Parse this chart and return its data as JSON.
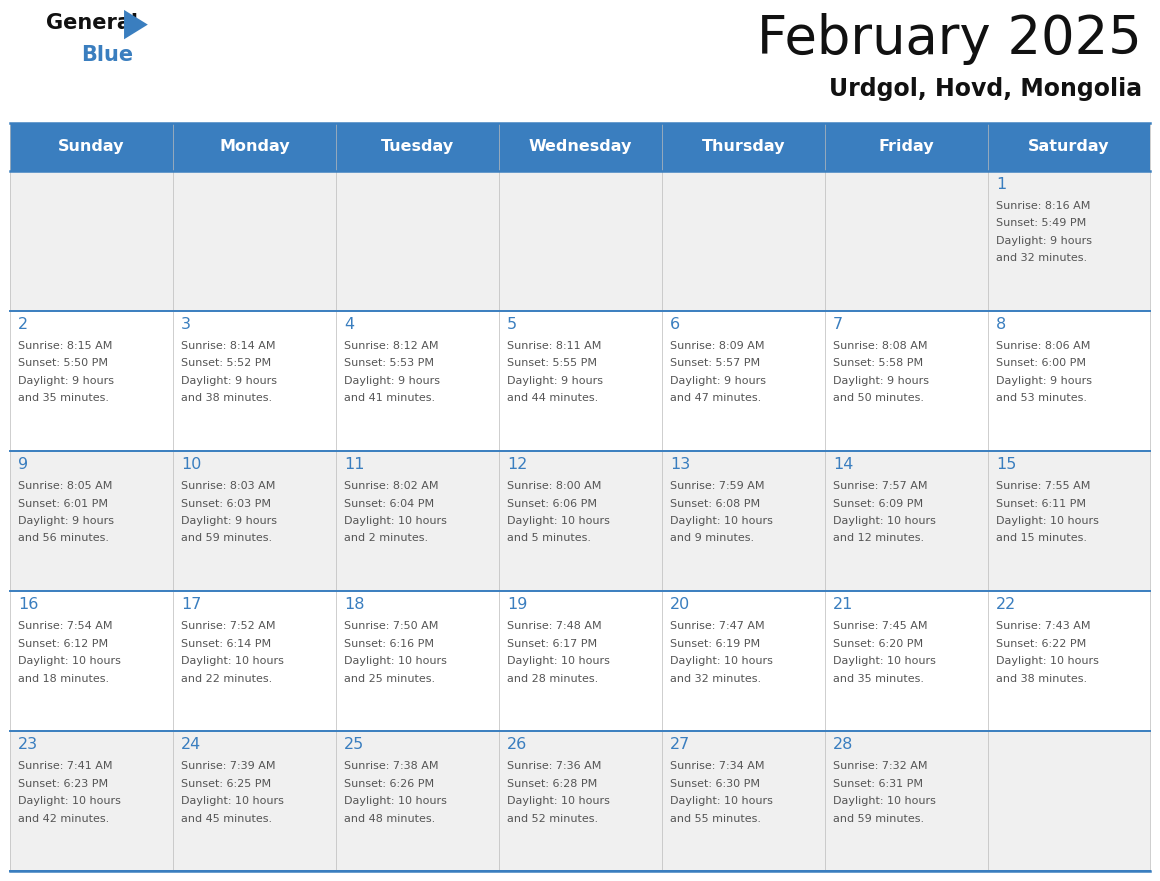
{
  "title": "February 2025",
  "subtitle": "Urdgol, Hovd, Mongolia",
  "header_color": "#3a7ebf",
  "header_text_color": "#ffffff",
  "day_names": [
    "Sunday",
    "Monday",
    "Tuesday",
    "Wednesday",
    "Thursday",
    "Friday",
    "Saturday"
  ],
  "background_color": "#ffffff",
  "cell_bg_even": "#f0f0f0",
  "cell_bg_odd": "#ffffff",
  "day_num_color": "#3a7ebf",
  "text_color": "#555555",
  "grid_color": "#bbbbbb",
  "days": [
    {
      "day": 1,
      "col": 6,
      "row": 0,
      "sunrise": "8:16 AM",
      "sunset": "5:49 PM",
      "daylight": "9 hours and 32 minutes."
    },
    {
      "day": 2,
      "col": 0,
      "row": 1,
      "sunrise": "8:15 AM",
      "sunset": "5:50 PM",
      "daylight": "9 hours and 35 minutes."
    },
    {
      "day": 3,
      "col": 1,
      "row": 1,
      "sunrise": "8:14 AM",
      "sunset": "5:52 PM",
      "daylight": "9 hours and 38 minutes."
    },
    {
      "day": 4,
      "col": 2,
      "row": 1,
      "sunrise": "8:12 AM",
      "sunset": "5:53 PM",
      "daylight": "9 hours and 41 minutes."
    },
    {
      "day": 5,
      "col": 3,
      "row": 1,
      "sunrise": "8:11 AM",
      "sunset": "5:55 PM",
      "daylight": "9 hours and 44 minutes."
    },
    {
      "day": 6,
      "col": 4,
      "row": 1,
      "sunrise": "8:09 AM",
      "sunset": "5:57 PM",
      "daylight": "9 hours and 47 minutes."
    },
    {
      "day": 7,
      "col": 5,
      "row": 1,
      "sunrise": "8:08 AM",
      "sunset": "5:58 PM",
      "daylight": "9 hours and 50 minutes."
    },
    {
      "day": 8,
      "col": 6,
      "row": 1,
      "sunrise": "8:06 AM",
      "sunset": "6:00 PM",
      "daylight": "9 hours and 53 minutes."
    },
    {
      "day": 9,
      "col": 0,
      "row": 2,
      "sunrise": "8:05 AM",
      "sunset": "6:01 PM",
      "daylight": "9 hours and 56 minutes."
    },
    {
      "day": 10,
      "col": 1,
      "row": 2,
      "sunrise": "8:03 AM",
      "sunset": "6:03 PM",
      "daylight": "9 hours and 59 minutes."
    },
    {
      "day": 11,
      "col": 2,
      "row": 2,
      "sunrise": "8:02 AM",
      "sunset": "6:04 PM",
      "daylight": "10 hours and 2 minutes."
    },
    {
      "day": 12,
      "col": 3,
      "row": 2,
      "sunrise": "8:00 AM",
      "sunset": "6:06 PM",
      "daylight": "10 hours and 5 minutes."
    },
    {
      "day": 13,
      "col": 4,
      "row": 2,
      "sunrise": "7:59 AM",
      "sunset": "6:08 PM",
      "daylight": "10 hours and 9 minutes."
    },
    {
      "day": 14,
      "col": 5,
      "row": 2,
      "sunrise": "7:57 AM",
      "sunset": "6:09 PM",
      "daylight": "10 hours and 12 minutes."
    },
    {
      "day": 15,
      "col": 6,
      "row": 2,
      "sunrise": "7:55 AM",
      "sunset": "6:11 PM",
      "daylight": "10 hours and 15 minutes."
    },
    {
      "day": 16,
      "col": 0,
      "row": 3,
      "sunrise": "7:54 AM",
      "sunset": "6:12 PM",
      "daylight": "10 hours and 18 minutes."
    },
    {
      "day": 17,
      "col": 1,
      "row": 3,
      "sunrise": "7:52 AM",
      "sunset": "6:14 PM",
      "daylight": "10 hours and 22 minutes."
    },
    {
      "day": 18,
      "col": 2,
      "row": 3,
      "sunrise": "7:50 AM",
      "sunset": "6:16 PM",
      "daylight": "10 hours and 25 minutes."
    },
    {
      "day": 19,
      "col": 3,
      "row": 3,
      "sunrise": "7:48 AM",
      "sunset": "6:17 PM",
      "daylight": "10 hours and 28 minutes."
    },
    {
      "day": 20,
      "col": 4,
      "row": 3,
      "sunrise": "7:47 AM",
      "sunset": "6:19 PM",
      "daylight": "10 hours and 32 minutes."
    },
    {
      "day": 21,
      "col": 5,
      "row": 3,
      "sunrise": "7:45 AM",
      "sunset": "6:20 PM",
      "daylight": "10 hours and 35 minutes."
    },
    {
      "day": 22,
      "col": 6,
      "row": 3,
      "sunrise": "7:43 AM",
      "sunset": "6:22 PM",
      "daylight": "10 hours and 38 minutes."
    },
    {
      "day": 23,
      "col": 0,
      "row": 4,
      "sunrise": "7:41 AM",
      "sunset": "6:23 PM",
      "daylight": "10 hours and 42 minutes."
    },
    {
      "day": 24,
      "col": 1,
      "row": 4,
      "sunrise": "7:39 AM",
      "sunset": "6:25 PM",
      "daylight": "10 hours and 45 minutes."
    },
    {
      "day": 25,
      "col": 2,
      "row": 4,
      "sunrise": "7:38 AM",
      "sunset": "6:26 PM",
      "daylight": "10 hours and 48 minutes."
    },
    {
      "day": 26,
      "col": 3,
      "row": 4,
      "sunrise": "7:36 AM",
      "sunset": "6:28 PM",
      "daylight": "10 hours and 52 minutes."
    },
    {
      "day": 27,
      "col": 4,
      "row": 4,
      "sunrise": "7:34 AM",
      "sunset": "6:30 PM",
      "daylight": "10 hours and 55 minutes."
    },
    {
      "day": 28,
      "col": 5,
      "row": 4,
      "sunrise": "7:32 AM",
      "sunset": "6:31 PM",
      "daylight": "10 hours and 59 minutes."
    }
  ]
}
